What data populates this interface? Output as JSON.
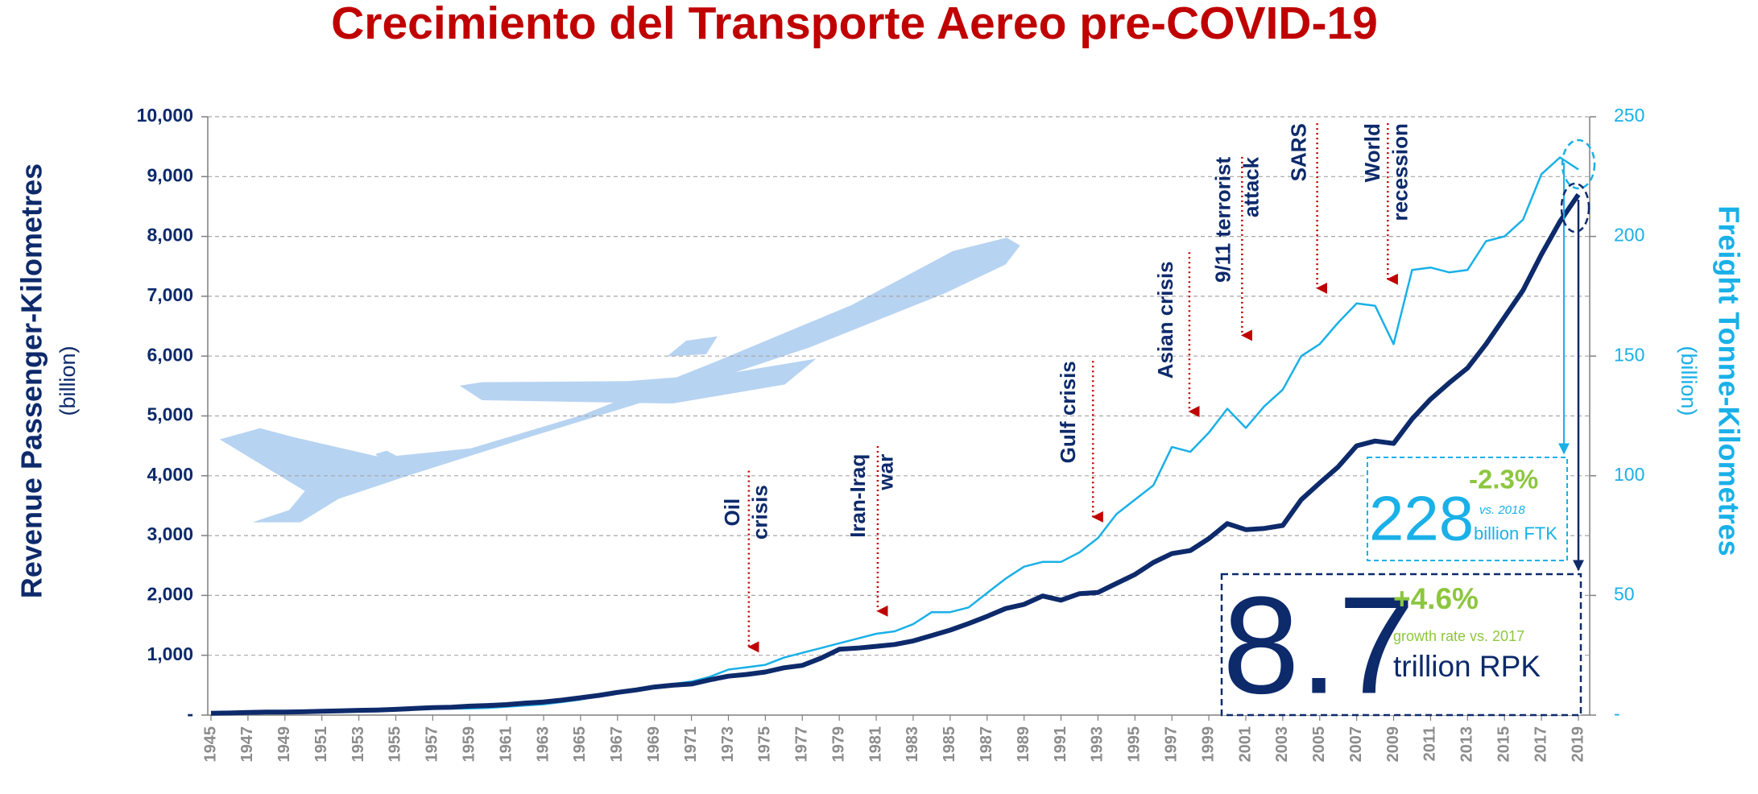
{
  "chart_data": {
    "type": "line",
    "title": "Crecimiento del Transporte Aereo pre-COVID-19",
    "y_label": "Revenue Passenger-Kilometres",
    "y_unit": "(billion)",
    "y2_label": "Freight Tonne-Kilometres",
    "y2_unit": "(billion)",
    "x": [
      1945,
      1946,
      1947,
      1948,
      1949,
      1950,
      1951,
      1952,
      1953,
      1954,
      1955,
      1956,
      1957,
      1958,
      1959,
      1960,
      1961,
      1962,
      1963,
      1964,
      1965,
      1966,
      1967,
      1968,
      1969,
      1970,
      1971,
      1972,
      1973,
      1974,
      1975,
      1976,
      1977,
      1978,
      1979,
      1980,
      1981,
      1982,
      1983,
      1984,
      1985,
      1986,
      1987,
      1988,
      1989,
      1990,
      1991,
      1992,
      1993,
      1994,
      1995,
      1996,
      1997,
      1998,
      1999,
      2000,
      2001,
      2002,
      2003,
      2004,
      2005,
      2006,
      2007,
      2008,
      2009,
      2010,
      2011,
      2012,
      2013,
      2014,
      2015,
      2016,
      2017,
      2018,
      2019
    ],
    "xlim": [
      1945,
      2019
    ],
    "xticks": [
      1945,
      1947,
      1949,
      1951,
      1953,
      1955,
      1957,
      1959,
      1961,
      1963,
      1965,
      1967,
      1969,
      1971,
      1973,
      1975,
      1977,
      1979,
      1981,
      1983,
      1985,
      1987,
      1989,
      1991,
      1993,
      1995,
      1997,
      1999,
      2001,
      2003,
      2005,
      2007,
      2009,
      2011,
      2013,
      2015,
      2017,
      2019
    ],
    "ylim": [
      0,
      10000
    ],
    "yticks": [
      {
        "value": 0,
        "label": "-"
      },
      {
        "value": 1000,
        "label": "1,000"
      },
      {
        "value": 2000,
        "label": "2,000"
      },
      {
        "value": 3000,
        "label": "3,000"
      },
      {
        "value": 4000,
        "label": "4,000"
      },
      {
        "value": 5000,
        "label": "5,000"
      },
      {
        "value": 6000,
        "label": "6,000"
      },
      {
        "value": 7000,
        "label": "7,000"
      },
      {
        "value": 8000,
        "label": "8,000"
      },
      {
        "value": 9000,
        "label": "9,000"
      },
      {
        "value": 10000,
        "label": "10,000"
      }
    ],
    "y2lim": [
      0,
      250
    ],
    "y2ticks": [
      {
        "value": 0,
        "label": "-"
      },
      50,
      100,
      150,
      200,
      250
    ],
    "grid": true,
    "series": [
      {
        "color": "#0d2a6b",
        "values": [
          30,
          35,
          45,
          50,
          50,
          55,
          65,
          70,
          80,
          85,
          95,
          110,
          125,
          130,
          150,
          160,
          175,
          200,
          220,
          250,
          290,
          330,
          380,
          420,
          470,
          500,
          520,
          590,
          650,
          680,
          720,
          790,
          830,
          950,
          1100,
          1120,
          1150,
          1180,
          1240,
          1330,
          1420,
          1530,
          1650,
          1780,
          1850,
          1990,
          1920,
          2030,
          2050,
          2200,
          2350,
          2550,
          2700,
          2750,
          2950,
          3200,
          3100,
          3120,
          3170,
          3600,
          3880,
          4150,
          4500,
          4580,
          4540,
          4950,
          5280,
          5550,
          5800,
          6200,
          6650,
          7100,
          7700,
          8250,
          8700
        ]
      },
      {
        "color": "#1ab0e8",
        "axis": "y2",
        "values": [
          1,
          1.2,
          1.4,
          1.5,
          1.6,
          1.8,
          2,
          2.1,
          2.2,
          2.3,
          2.5,
          2.6,
          2.7,
          2.7,
          2.8,
          3,
          3.5,
          4,
          4.5,
          5.5,
          6.5,
          8,
          9,
          10,
          12,
          13,
          14,
          16,
          19,
          20,
          21,
          24,
          26,
          28,
          30,
          32,
          34,
          35,
          38,
          43,
          43,
          45,
          51,
          57,
          62,
          64,
          64,
          68,
          74,
          84,
          90,
          96,
          112,
          110,
          118,
          128,
          120,
          129,
          136,
          150,
          155,
          164,
          172,
          171,
          155,
          186,
          187,
          185,
          186,
          198,
          200,
          207,
          226,
          233,
          228
        ]
      }
    ],
    "annotations": {
      "events": [
        {
          "lines": [
            "Oil",
            "crisis"
          ]
        },
        {
          "lines": [
            "Iran-Iraq",
            "war"
          ]
        },
        {
          "lines": [
            "Gulf crisis"
          ]
        },
        {
          "lines": [
            "Asian crisis"
          ]
        },
        {
          "lines": [
            "9/11 terrorist",
            "attack"
          ]
        },
        {
          "lines": [
            "SARS"
          ]
        },
        {
          "lines": [
            "World",
            "recession"
          ]
        }
      ],
      "ftk_value": "228",
      "ftk_change": "-2.3%",
      "ftk_note": "vs. 2018",
      "ftk_unit": "billion FTK",
      "rpk_value": "8.7",
      "rpk_change": "+4.6%",
      "rpk_note": "growth rate vs. 2017",
      "rpk_unit": "trillion RPK"
    }
  }
}
